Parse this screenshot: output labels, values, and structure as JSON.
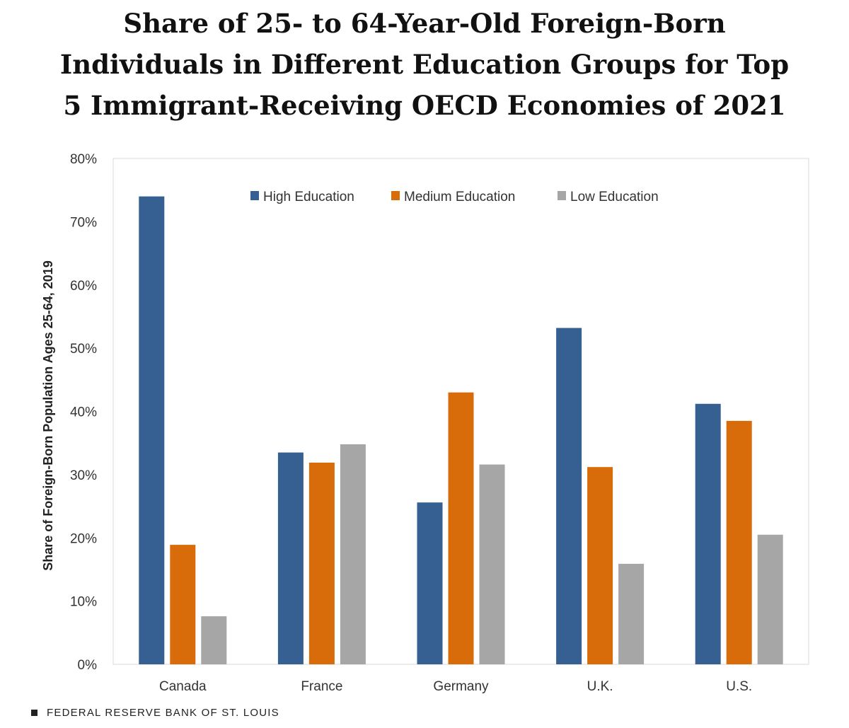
{
  "title_lines": [
    "Share of 25- to 64-Year-Old Foreign-Born",
    "Individuals in Different Education Groups for Top",
    "5 Immigrant-Receiving OECD Economies of 2021"
  ],
  "footer": {
    "source": "FEDERAL RESERVE BANK OF ST. LOUIS"
  },
  "chart_data": {
    "type": "bar",
    "title": "Share of 25- to 64-Year-Old Foreign-Born Individuals in Different Education Groups for Top 5 Immigrant-Receiving OECD Economies of 2021",
    "ylabel": "Share of Foreign-Born Population Ages 25-64, 2019",
    "xlabel": "",
    "ylim": [
      0,
      80
    ],
    "yticks": [
      "0%",
      "10%",
      "20%",
      "30%",
      "40%",
      "50%",
      "60%",
      "70%",
      "80%"
    ],
    "categories": [
      "Canada",
      "France",
      "Germany",
      "U.K.",
      "U.S."
    ],
    "series": [
      {
        "name": "High Education",
        "color": "#376092",
        "values": [
          74.0,
          33.5,
          25.6,
          53.2,
          41.2
        ]
      },
      {
        "name": "Medium Education",
        "color": "#D86C0B",
        "values": [
          18.9,
          31.9,
          43.0,
          31.2,
          38.5
        ]
      },
      {
        "name": "Low Education",
        "color": "#A6A6A6",
        "values": [
          7.6,
          34.8,
          31.6,
          15.9,
          20.5
        ]
      }
    ],
    "legend_position": "top-center",
    "grid": false
  }
}
